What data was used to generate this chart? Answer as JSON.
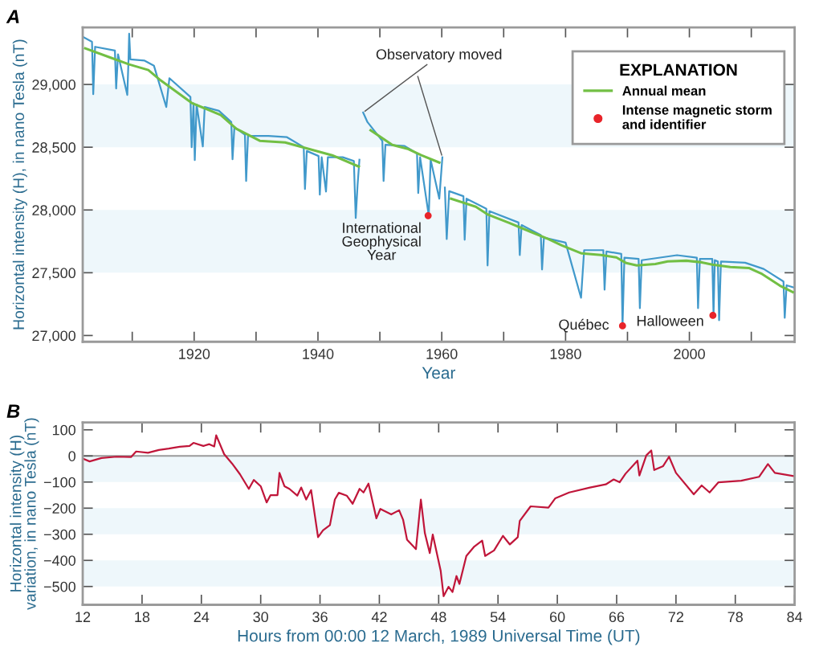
{
  "chart_data": [
    {
      "type": "line",
      "title": "A",
      "xlabel": "Year",
      "ylabel": "Horizontal intensity (H), in nano Tesla (nT)",
      "legend_title": "EXPLANATION",
      "legend": "top right",
      "grid": false,
      "xlim": [
        1902,
        2017
      ],
      "ylim": [
        26950,
        29455
      ],
      "xticks": [
        {
          "value": 1910,
          "label": null
        },
        1920,
        {
          "value": 1930,
          "label": null
        },
        1940,
        {
          "value": 1950,
          "label": null
        },
        1960,
        {
          "value": 1970,
          "label": null
        },
        1980,
        {
          "value": 1990,
          "label": null
        },
        2000,
        {
          "value": 2010,
          "label": null
        }
      ],
      "yticks": [
        {
          "value": 27000,
          "label": "27,000"
        },
        {
          "value": 27500,
          "label": "27,500"
        },
        {
          "value": 28000,
          "label": "28,000"
        },
        {
          "value": 28500,
          "label": "28,500"
        },
        {
          "value": 29000,
          "label": "29,000"
        }
      ],
      "bands": [
        {
          "axis": "y",
          "from": 27500,
          "to": 28000,
          "color": "#eef7fb"
        },
        {
          "axis": "y",
          "from": 28500,
          "to": 29000,
          "color": "#eef7fb"
        }
      ],
      "series": [
        {
          "type": "line",
          "color": "#4199cb",
          "x": [
            1902,
            1903.5,
            1903.7,
            1904,
            1907.2,
            1907.4,
            1907.7,
            1909.2,
            1909.4,
            1909.5,
            1909.7,
            1912,
            1913.5,
            1915.5,
            1916,
            1919.4,
            1919.6,
            1919.9,
            1920.1,
            1920.4,
            1921.4,
            1921.7,
            1924,
            1926,
            1926.2,
            1926.5,
            1928.2,
            1928.4,
            1928.7,
            1932,
            1935,
            1937.7,
            1937.9,
            1938.2,
            1940.1,
            1940.3,
            1940.6,
            1941.3,
            1941.6,
            1944,
            1945.8,
            1946.1,
            1946.4,
            1946.7,
            1947.0,
            1947.3,
            1948,
            1950.4,
            1950.6,
            1950.9,
            1954,
            1956,
            1956.2,
            1956.5,
            1957.9,
            1958.2,
            1959.6,
            1960.1,
            1960.3,
            1960.5,
            1960.8,
            1961.2,
            1963.5,
            1963.7,
            1964,
            1967.2,
            1967.4,
            1967.7,
            1972.4,
            1972.6,
            1972.9,
            1976,
            1976.2,
            1976.5,
            1980,
            1982.5,
            1983,
            1986.1,
            1986.3,
            1986.6,
            1989,
            1989.2,
            1989.5,
            1991.8,
            1992,
            1992.3,
            1998,
            2001.2,
            2001.4,
            2001.7,
            2003.7,
            2003.9,
            2004.1,
            2004.6,
            2004.8,
            2005.1,
            2009,
            2012,
            2015.2,
            2015.4,
            2015.7,
            2017
          ],
          "values": [
            29380,
            29340,
            28923,
            29300,
            29270,
            28968,
            29240,
            28917,
            29200,
            29404,
            29200,
            29190,
            29150,
            28820,
            29050,
            28900,
            28500,
            28850,
            28397,
            28840,
            28506,
            28820,
            28790,
            28700,
            28404,
            28660,
            28600,
            28231,
            28590,
            28590,
            28580,
            28500,
            28167,
            28470,
            28430,
            28122,
            28420,
            28147,
            28420,
            28420,
            28390,
            27936,
            28200,
            28400,
            null,
            28776,
            28700,
            28550,
            28231,
            28520,
            28510,
            28450,
            28135,
            28420,
            27955,
            28400,
            28090,
            28420,
            null,
            28179,
            27769,
            28150,
            28110,
            27763,
            28090,
            28010,
            27558,
            27990,
            27900,
            27641,
            27880,
            27800,
            27526,
            27780,
            27740,
            27301,
            27680,
            27680,
            27365,
            27670,
            27650,
            27077,
            27620,
            27610,
            27218,
            27600,
            27640,
            27620,
            27218,
            27610,
            27610,
            27160,
            27600,
            27590,
            27122,
            27590,
            27580,
            27530,
            27430,
            27141,
            27400,
            27380
          ]
        },
        {
          "type": "line",
          "name": "Annual mean",
          "color": "#72bf44",
          "x": [
            1902.4,
            1906.6,
            1909.5,
            1912.6,
            1914.6,
            1919.6,
            1924.3,
            1926.8,
            1930.6,
            1934.7,
            1938.5,
            1942.3,
            1946.6,
            1947.5,
            1948.5,
            1952,
            1954.5,
            1956.7,
            1959.6,
            1960.5,
            1961.5,
            1965.5,
            1967.5,
            1970.9,
            1974.3,
            1977.2,
            1979.4,
            1982.6,
            1985.7,
            1988.2,
            1989.8,
            1991.5,
            1994.5,
            1996.5,
            1999.5,
            2002,
            2003.7,
            2006.6,
            2009.6,
            2011.6,
            2014.6,
            2016.7
          ],
          "values": [
            29288,
            29212,
            29160,
            29115,
            29032,
            28853,
            28756,
            28647,
            28551,
            28538,
            28487,
            28436,
            28346,
            null,
            28635,
            28519,
            28487,
            28436,
            28378,
            null,
            28090,
            28026,
            27962,
            27897,
            27827,
            27769,
            27718,
            27654,
            27641,
            27622,
            27577,
            27558,
            27570,
            27590,
            27596,
            27583,
            27564,
            27545,
            27538,
            27494,
            27398,
            27346
          ]
        },
        {
          "type": "scatter",
          "name": "Intense magnetic storm\nand identifier",
          "color": "#e8242a",
          "marker": "circle",
          "x": [
            1957.8,
            1989.2,
            2003.8
          ],
          "values": [
            27955,
            27077,
            27160
          ]
        }
      ],
      "annotations": [
        {
          "text": "Observatory moved",
          "x": 1947.3,
          "y": 28776
        },
        {
          "text": "International\nGeophysical\nYear",
          "x": 1957.8,
          "y": 27955
        },
        {
          "text": "Québec",
          "x": 1989.2,
          "y": 27077
        },
        {
          "text": "Halloween",
          "x": 2003.8,
          "y": 27160
        }
      ]
    },
    {
      "type": "line",
      "title": "B",
      "xlabel": "Hours from 00:00 12 March, 1989 Universal Time (UT)",
      "ylabel": "Horizontal intensity (H)\nvariation, in nano Tesla (nT)",
      "grid": false,
      "xlim": [
        12,
        84
      ],
      "ylim": [
        -570,
        128
      ],
      "xticks": [
        12,
        18,
        24,
        30,
        36,
        42,
        48,
        54,
        60,
        66,
        72,
        78,
        84
      ],
      "yticks": [
        {
          "value": -500,
          "label": "−500"
        },
        {
          "value": -400,
          "label": "−400"
        },
        {
          "value": -300,
          "label": "−300"
        },
        {
          "value": -200,
          "label": "−200"
        },
        {
          "value": -100,
          "label": "−100"
        },
        0,
        100
      ],
      "bands": [
        {
          "axis": "y",
          "from": -100,
          "to": 0,
          "color": "#eef7fb"
        },
        {
          "axis": "y",
          "from": -300,
          "to": -200,
          "color": "#eef7fb"
        },
        {
          "axis": "y",
          "from": -500,
          "to": -400,
          "color": "#eef7fb"
        }
      ],
      "ref_lines": [
        {
          "axis": "y",
          "value": 0,
          "color": "#9a9a9a"
        }
      ],
      "series": [
        {
          "type": "line",
          "color": "#c0163a",
          "x": [
            12,
            12.7,
            13.9,
            15.4,
            16.9,
            17.4,
            18.6,
            19.7,
            20.7,
            21.8,
            22.8,
            23.2,
            24.2,
            24.8,
            25.3,
            25.5,
            26.3,
            27.1,
            27.9,
            28.8,
            29.3,
            30,
            30.6,
            31,
            31.7,
            31.9,
            32.4,
            32.9,
            33.7,
            34.1,
            34.6,
            35.1,
            35.8,
            36.3,
            37,
            37.5,
            37.9,
            38.7,
            39.3,
            40,
            40.4,
            40.9,
            41.7,
            42.1,
            43.2,
            44,
            44.4,
            44.8,
            45.7,
            46.2,
            46.6,
            47.1,
            47.4,
            48.2,
            48.5,
            49,
            49.4,
            49.8,
            50.1,
            50.8,
            51.6,
            52.4,
            52.7,
            53.6,
            54.5,
            55.2,
            56,
            56.2,
            57.3,
            59.1,
            59.8,
            61.2,
            63.3,
            64.9,
            65.7,
            66.3,
            66.9,
            68.1,
            68.3,
            69,
            69.5,
            69.8,
            70.7,
            71.3,
            72,
            73.8,
            74.6,
            75.4,
            76.3,
            78.6,
            80.4,
            81.3,
            82,
            84
          ],
          "values": [
            -10,
            -21,
            -8,
            -3,
            -4,
            17,
            12,
            23,
            28,
            35,
            38,
            50,
            38,
            45,
            36,
            79,
            7,
            -29,
            -70,
            -126,
            -92,
            -116,
            -178,
            -150,
            -150,
            -65,
            -116,
            -126,
            -152,
            -121,
            -167,
            -131,
            -311,
            -285,
            -265,
            -167,
            -141,
            -152,
            -183,
            -126,
            -140,
            -106,
            -239,
            -203,
            -224,
            -208,
            -244,
            -321,
            -357,
            -167,
            -295,
            -372,
            -301,
            -439,
            -537,
            -501,
            -521,
            -460,
            -490,
            -383,
            -347,
            -324,
            -383,
            -362,
            -306,
            -339,
            -311,
            -249,
            -193,
            -198,
            -162,
            -140,
            -121,
            -109,
            -90,
            -101,
            -68,
            -18,
            -75,
            2,
            21,
            -54,
            -39,
            -3,
            -65,
            -147,
            -113,
            -140,
            -101,
            -95,
            -80,
            -31,
            -65,
            -78
          ]
        }
      ]
    }
  ]
}
